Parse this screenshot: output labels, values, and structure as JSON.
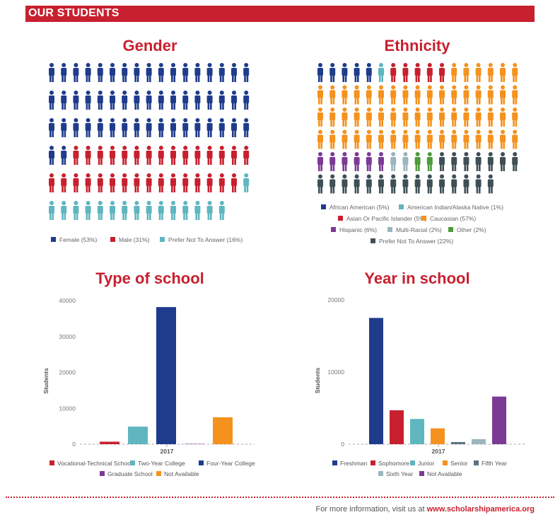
{
  "banner": {
    "title": "OUR STUDENTS"
  },
  "gender": {
    "title": "Gender",
    "colors": {
      "female": "#1f3c8c",
      "male": "#c8202e",
      "prefer": "#5fb6bf"
    },
    "rows": 6,
    "cols": 17,
    "legend": [
      {
        "label": "Female (53%)",
        "color": "#1f3c8c",
        "percent": 53
      },
      {
        "label": "Male (31%)",
        "color": "#c8202e",
        "percent": 31
      },
      {
        "label": "Prefer Not To Answer (16%)",
        "color": "#5fb6bf",
        "percent": 16
      }
    ]
  },
  "ethnicity": {
    "title": "Ethnicity",
    "legend": [
      {
        "label": "African American (5%)",
        "color": "#1f3c8c",
        "percent": 5
      },
      {
        "label": "American Indian/Alaska Native (1%)",
        "color": "#5fb6bf",
        "percent": 1
      },
      {
        "label": "Asian Or Pacific Islander (5%)",
        "color": "#c8202e",
        "percent": 5
      },
      {
        "label": "Caucasian (57%)",
        "color": "#f5921e",
        "percent": 57
      },
      {
        "label": "Hispanic (6%)",
        "color": "#7b3a96",
        "percent": 6
      },
      {
        "label": "Multi-Racial (2%)",
        "color": "#9ab5bf",
        "percent": 2
      },
      {
        "label": "Other (2%)",
        "color": "#4e9a3c",
        "percent": 2
      },
      {
        "label": "Prefer Not To Answer (22%)",
        "color": "#3f4f57",
        "percent": 22
      }
    ]
  },
  "chart_data": [
    {
      "type": "bar",
      "title": "Type of school",
      "ylabel": "Students",
      "categories": [
        "2017"
      ],
      "ylim": [
        0,
        40000
      ],
      "yticks": [
        "0",
        "10000",
        "20000",
        "30000",
        "40000"
      ],
      "series": [
        {
          "name": "Vocational-Technical School",
          "color": "#c8202e",
          "values": [
            700
          ]
        },
        {
          "name": "Two-Year College",
          "color": "#5fb6bf",
          "values": [
            4900
          ]
        },
        {
          "name": "Four-Year College",
          "color": "#1f3c8c",
          "values": [
            38200
          ]
        },
        {
          "name": "Graduate School",
          "color": "#7b3a96",
          "values": [
            100
          ]
        },
        {
          "name": "Not Available",
          "color": "#f5921e",
          "values": [
            7500
          ]
        }
      ]
    },
    {
      "type": "bar",
      "title": "Year in school",
      "ylabel": "Students",
      "categories": [
        "2017"
      ],
      "ylim": [
        0,
        20000
      ],
      "yticks": [
        "0",
        "10000",
        "20000"
      ],
      "series": [
        {
          "name": "Freshman",
          "color": "#1f3c8c",
          "values": [
            17500
          ]
        },
        {
          "name": "Sophomore",
          "color": "#c8202e",
          "values": [
            4700
          ]
        },
        {
          "name": "Junior",
          "color": "#5fb6bf",
          "values": [
            3500
          ]
        },
        {
          "name": "Senior",
          "color": "#f5921e",
          "values": [
            2200
          ]
        },
        {
          "name": "Fifth Year",
          "color": "#5b7380",
          "values": [
            300
          ]
        },
        {
          "name": "Sixth Year",
          "color": "#9ab5bf",
          "values": [
            700
          ]
        },
        {
          "name": "Not Available",
          "color": "#7b3a96",
          "values": [
            6600
          ]
        }
      ]
    }
  ],
  "footer": {
    "text": "For more information, visit us at ",
    "link": "www.scholarshipamerica.org"
  }
}
